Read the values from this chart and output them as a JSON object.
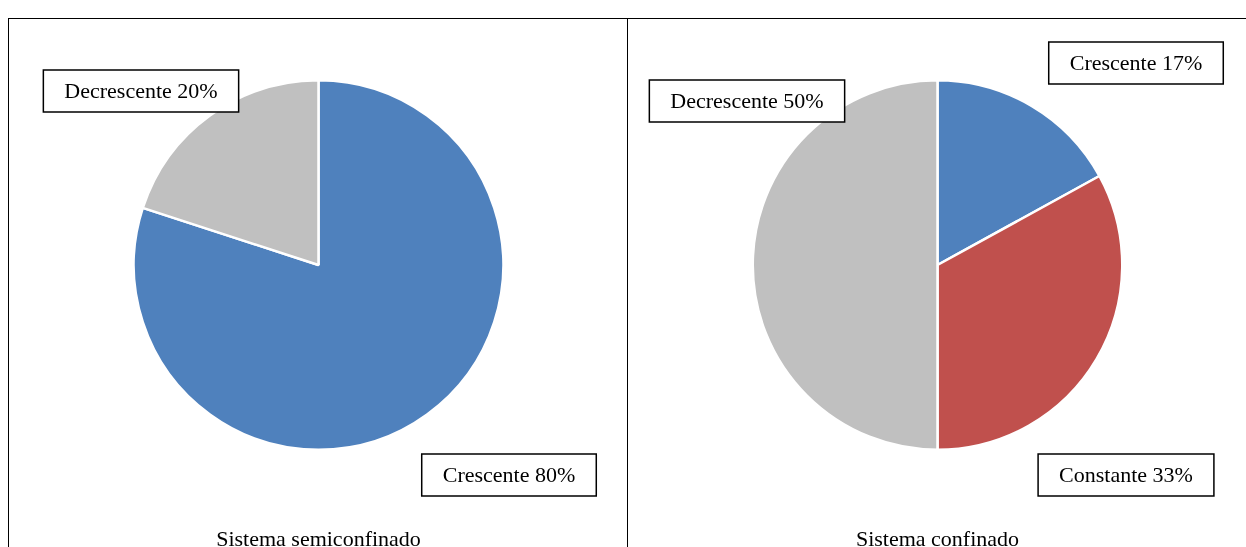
{
  "chart_data": [
    {
      "type": "pie",
      "title": "Sistema semiconfinado",
      "categories": [
        "Crescente",
        "Decrescente"
      ],
      "values": [
        80,
        20
      ],
      "colors": [
        "#4f81bd",
        "#c0c0c0"
      ],
      "value_labels": [
        "80%",
        "20%"
      ],
      "legend": false
    },
    {
      "type": "pie",
      "title": "Sistema confinado",
      "categories": [
        "Crescente",
        "Constante",
        "Decrescente"
      ],
      "values": [
        17,
        33,
        50
      ],
      "colors": [
        "#4f81bd",
        "#c0504d",
        "#c0c0c0"
      ],
      "value_labels": [
        "17%",
        "33%",
        "50%"
      ],
      "legend": false
    }
  ]
}
